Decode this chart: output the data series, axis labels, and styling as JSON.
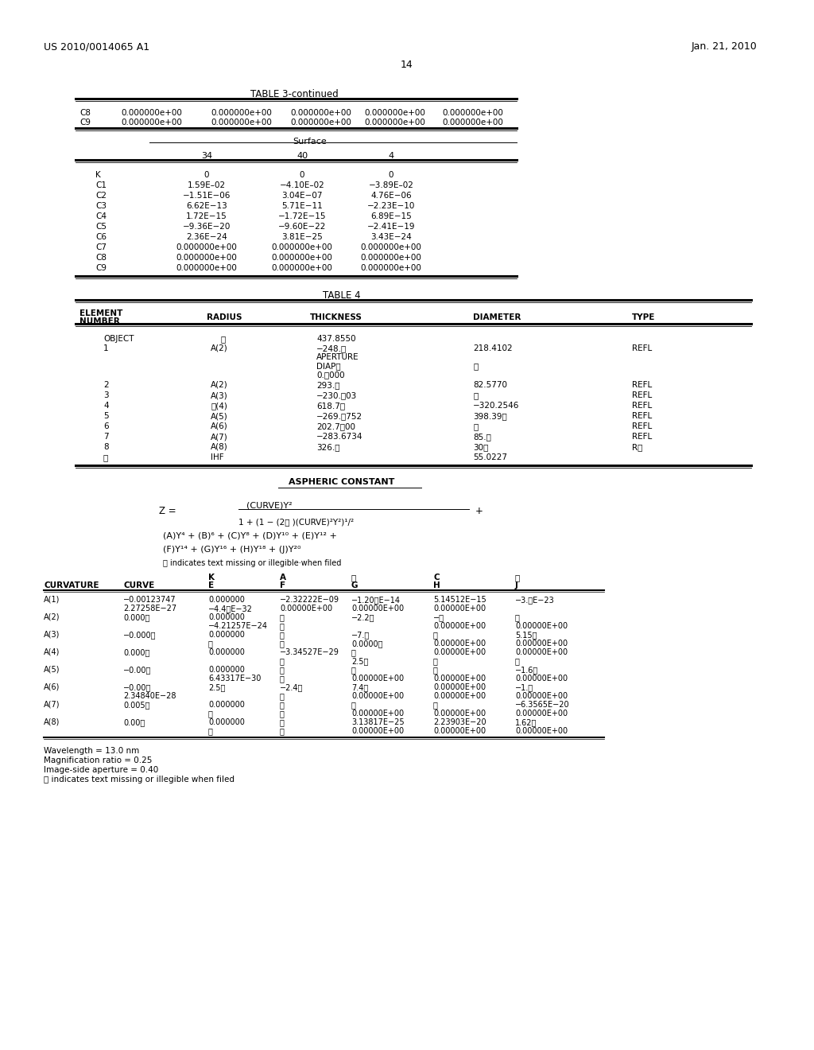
{
  "header_left": "US 2010/0014065 A1",
  "header_right": "Jan. 21, 2010",
  "page_number": "14",
  "background_color": "#ffffff"
}
